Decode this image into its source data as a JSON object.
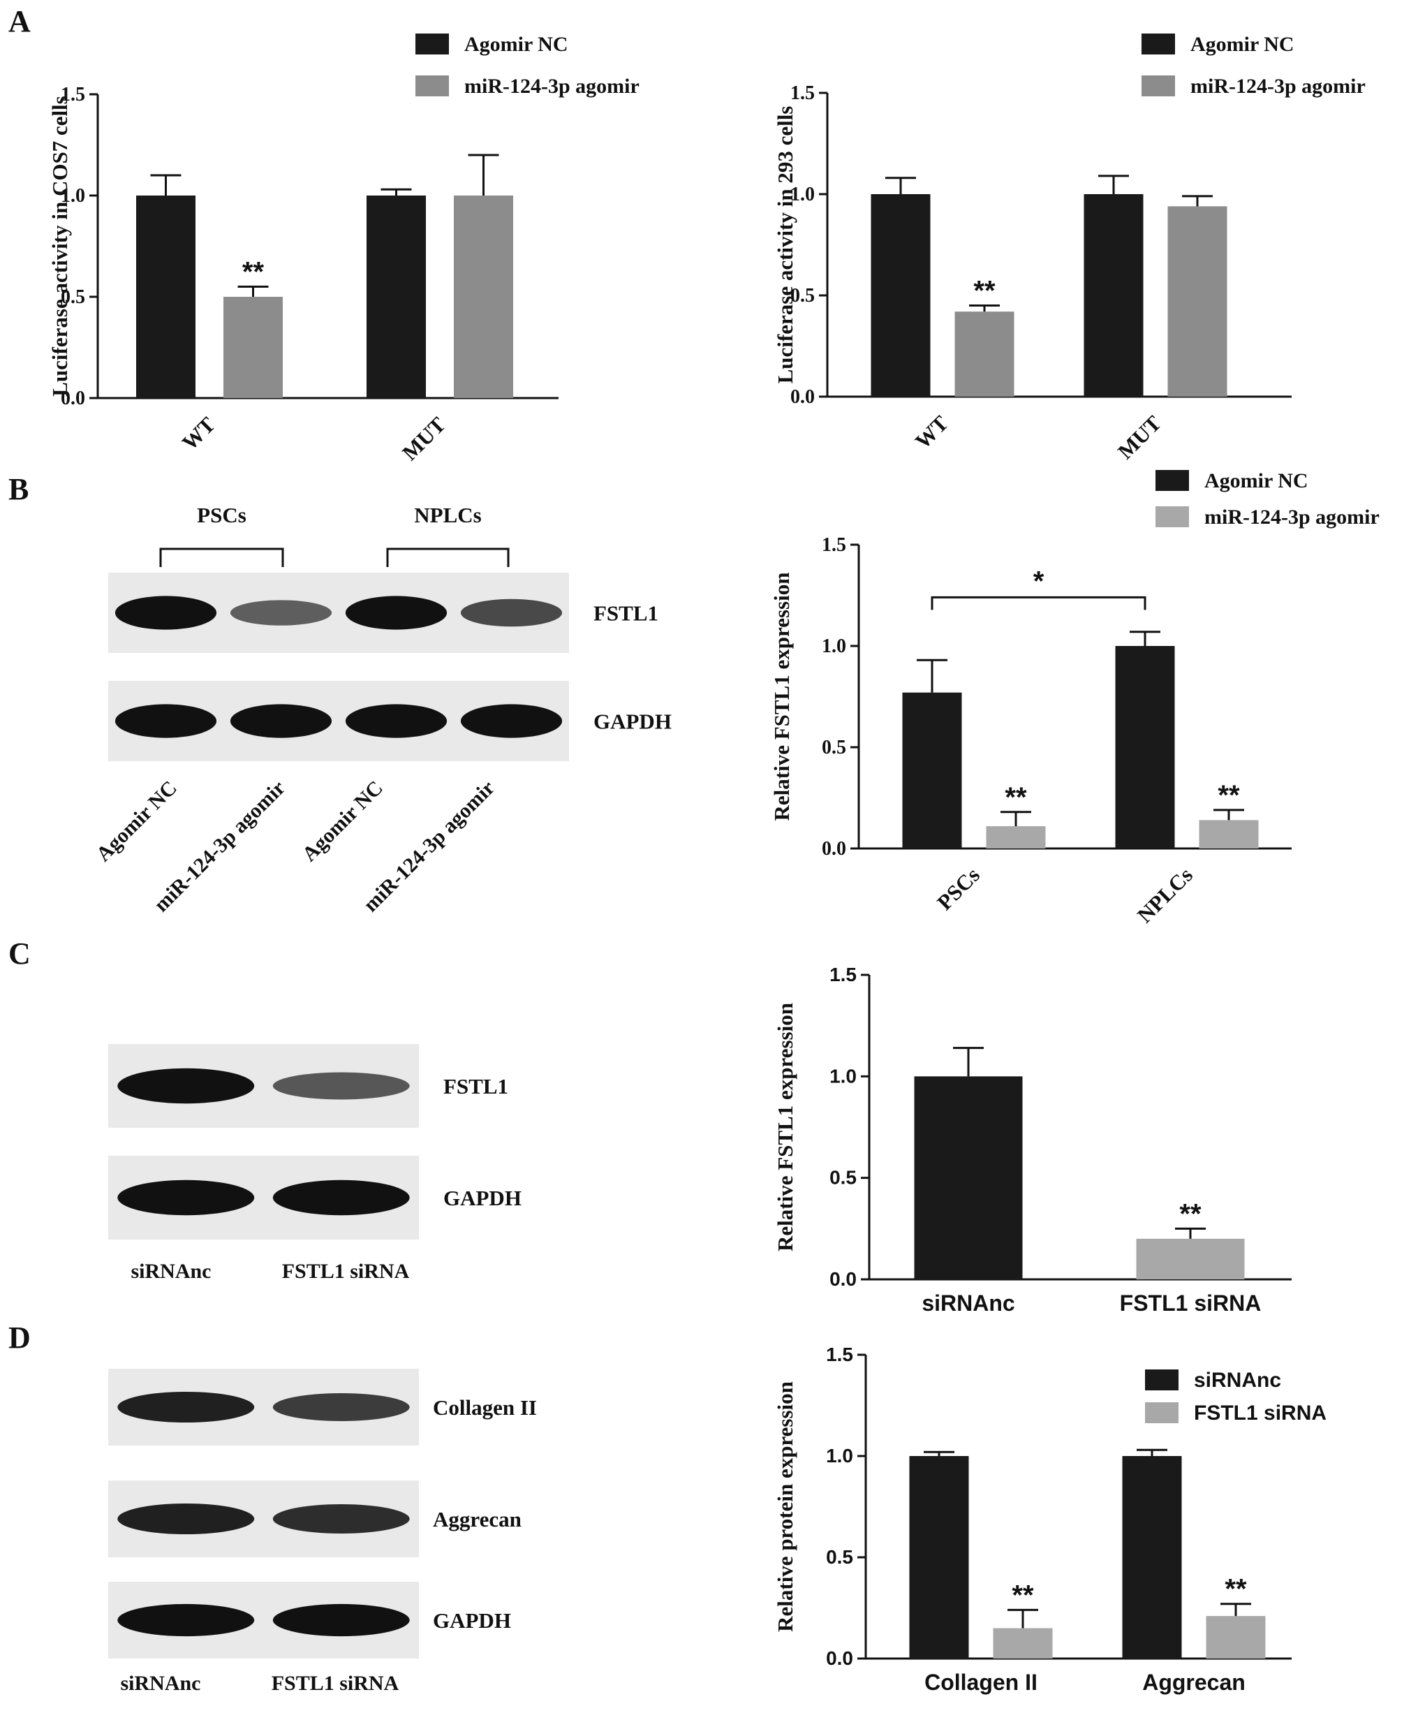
{
  "panel_labels": {
    "a": "A",
    "b": "B",
    "c": "C",
    "d": "D"
  },
  "colors": {
    "black_bar": "#1a1a1a",
    "gray_bar": "#8c8c8c",
    "light_gray_bar": "#a8a8a8",
    "blot_band": "#111111",
    "blot_bg": "#e9e9e9"
  },
  "blots": {
    "b": {
      "group_labels": [
        "PSCs",
        "NPLCs"
      ],
      "row_labels": [
        "FSTL1",
        "GAPDH"
      ],
      "lane_labels": [
        "Agomir NC",
        "miR-124-3p agomir",
        "Agomir NC",
        "miR-124-3p agomir"
      ],
      "band_strength": [
        [
          1.0,
          0.45,
          1.0,
          0.6
        ],
        [
          1.0,
          1.0,
          1.0,
          1.0
        ]
      ]
    },
    "c": {
      "row_labels": [
        "FSTL1",
        "GAPDH"
      ],
      "lane_labels": [
        "siRNAnc",
        "FSTL1 siRNA"
      ],
      "band_strength": [
        [
          1.0,
          0.5
        ],
        [
          1.0,
          1.0
        ]
      ]
    },
    "d": {
      "row_labels": [
        "Collagen II",
        "Aggrecan",
        "GAPDH"
      ],
      "lane_labels": [
        "siRNAnc",
        "FSTL1 siRNA"
      ],
      "band_strength": [
        [
          0.9,
          0.7
        ],
        [
          0.9,
          0.8
        ],
        [
          1.0,
          1.0
        ]
      ]
    }
  },
  "chart_data": [
    {
      "id": "A1",
      "type": "bar",
      "ylabel": "Luciferase activity in COS7 cells",
      "categories": [
        "WT",
        "MUT"
      ],
      "ylim": [
        0,
        1.5
      ],
      "yticks": [
        "0.0",
        "0.5",
        "1.0",
        "1.5"
      ],
      "legend": "top-right",
      "series": [
        {
          "name": "Agomir NC",
          "color": "#1a1a1a",
          "values": [
            1.0,
            1.0
          ],
          "errors": [
            0.1,
            0.03
          ],
          "sig": [
            "",
            ""
          ]
        },
        {
          "name": "miR-124-3p agomir",
          "color": "#8c8c8c",
          "values": [
            0.5,
            1.0
          ],
          "errors": [
            0.05,
            0.2
          ],
          "sig": [
            "**",
            ""
          ]
        }
      ]
    },
    {
      "id": "A2",
      "type": "bar",
      "ylabel": "Luciferase activity in 293 cells",
      "categories": [
        "WT",
        "MUT"
      ],
      "ylim": [
        0,
        1.5
      ],
      "yticks": [
        "0.0",
        "0.5",
        "1.0",
        "1.5"
      ],
      "legend": "top-right",
      "series": [
        {
          "name": "Agomir NC",
          "color": "#1a1a1a",
          "values": [
            1.0,
            1.0
          ],
          "errors": [
            0.08,
            0.09
          ],
          "sig": [
            "",
            ""
          ]
        },
        {
          "name": "miR-124-3p agomir",
          "color": "#8c8c8c",
          "values": [
            0.42,
            0.94
          ],
          "errors": [
            0.03,
            0.05
          ],
          "sig": [
            "**",
            ""
          ]
        }
      ]
    },
    {
      "id": "B",
      "type": "bar",
      "ylabel": "Relative FSTL1 expression",
      "categories": [
        "PSCs",
        "NPLCs"
      ],
      "ylim": [
        0,
        1.5
      ],
      "yticks": [
        "0.0",
        "0.5",
        "1.0",
        "1.5"
      ],
      "legend": "top-right",
      "bracket": {
        "label": "*",
        "from_category": 0,
        "to_category": 1,
        "value": 1.24
      },
      "series": [
        {
          "name": "Agomir NC",
          "color": "#1a1a1a",
          "values": [
            0.77,
            1.0
          ],
          "errors": [
            0.16,
            0.07
          ],
          "sig": [
            "",
            ""
          ]
        },
        {
          "name": "miR-124-3p agomir",
          "color": "#a8a8a8",
          "values": [
            0.11,
            0.14
          ],
          "errors": [
            0.07,
            0.05
          ],
          "sig": [
            "**",
            "**"
          ]
        }
      ]
    },
    {
      "id": "C",
      "type": "bar",
      "ylabel": "Relative FSTL1 expression",
      "categories": [
        "siRNAnc",
        "FSTL1 siRNA"
      ],
      "ylim": [
        0,
        1.5
      ],
      "yticks": [
        "0.0",
        "0.5",
        "1.0",
        "1.5"
      ],
      "series": [
        {
          "name": "",
          "colors": [
            "#1a1a1a",
            "#a8a8a8"
          ],
          "values": [
            1.0,
            0.2
          ],
          "errors": [
            0.14,
            0.05
          ],
          "sig": [
            "",
            "**"
          ]
        }
      ]
    },
    {
      "id": "D",
      "type": "bar",
      "ylabel": "Relative protein expression",
      "categories": [
        "Collagen II",
        "Aggrecan"
      ],
      "ylim": [
        0,
        1.5
      ],
      "yticks": [
        "0.0",
        "0.5",
        "1.0",
        "1.5"
      ],
      "legend": "top-right",
      "series": [
        {
          "name": "siRNAnc",
          "color": "#1a1a1a",
          "values": [
            1.0,
            1.0
          ],
          "errors": [
            0.02,
            0.03
          ],
          "sig": [
            "",
            ""
          ]
        },
        {
          "name": "FSTL1 siRNA",
          "color": "#a8a8a8",
          "values": [
            0.15,
            0.21
          ],
          "errors": [
            0.09,
            0.06
          ],
          "sig": [
            "**",
            "**"
          ]
        }
      ]
    }
  ]
}
